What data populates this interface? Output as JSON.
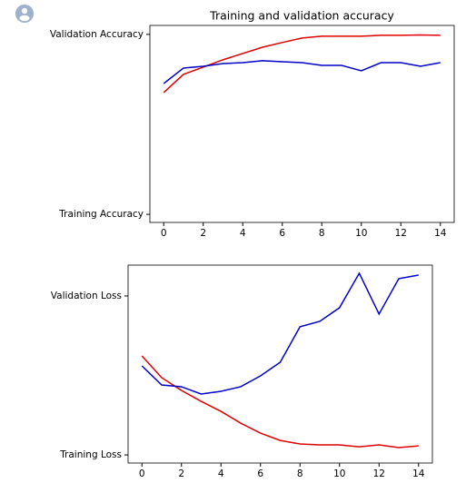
{
  "chart_data": [
    {
      "type": "line",
      "title": "Training and validation accuracy",
      "x": [
        0,
        1,
        2,
        3,
        4,
        5,
        6,
        7,
        8,
        9,
        10,
        11,
        12,
        13,
        14
      ],
      "xlim": [
        -0.7,
        14.7
      ],
      "xticks": [
        0,
        2,
        4,
        6,
        8,
        10,
        12,
        14
      ],
      "ylim": [
        -0.045,
        1.05
      ],
      "yticks": [
        {
          "value": 0,
          "label": "Training Accuracy"
        },
        {
          "value": 1,
          "label": "Validation Accuracy"
        }
      ],
      "series": [
        {
          "color": "#e00000",
          "values": [
            0.677,
            0.778,
            0.818,
            0.859,
            0.894,
            0.929,
            0.955,
            0.98,
            0.99,
            0.99,
            0.99,
            0.995,
            0.995,
            0.997,
            0.995
          ]
        },
        {
          "color": "#0000c8",
          "values": [
            0.727,
            0.813,
            0.823,
            0.838,
            0.843,
            0.854,
            0.848,
            0.843,
            0.828,
            0.828,
            0.798,
            0.843,
            0.843,
            0.823,
            0.843
          ]
        }
      ]
    },
    {
      "type": "line",
      "x": [
        0,
        1,
        2,
        3,
        4,
        5,
        6,
        7,
        8,
        9,
        10,
        11,
        12,
        13,
        14
      ],
      "xlim": [
        -0.7,
        14.7
      ],
      "xticks": [
        0,
        2,
        4,
        6,
        8,
        10,
        12,
        14
      ],
      "ylim": [
        -0.051,
        1.194
      ],
      "yticks": [
        {
          "value": 0,
          "label": "Training Loss"
        },
        {
          "value": 1,
          "label": "Validation Loss"
        }
      ],
      "series": [
        {
          "color": "#e00000",
          "values": [
            0.623,
            0.486,
            0.406,
            0.337,
            0.274,
            0.2,
            0.137,
            0.091,
            0.069,
            0.063,
            0.063,
            0.051,
            0.063,
            0.046,
            0.057
          ]
        },
        {
          "color": "#0000c8",
          "values": [
            0.56,
            0.44,
            0.429,
            0.383,
            0.4,
            0.429,
            0.497,
            0.583,
            0.806,
            0.84,
            0.926,
            1.143,
            0.886,
            1.109,
            1.131
          ]
        }
      ]
    }
  ]
}
